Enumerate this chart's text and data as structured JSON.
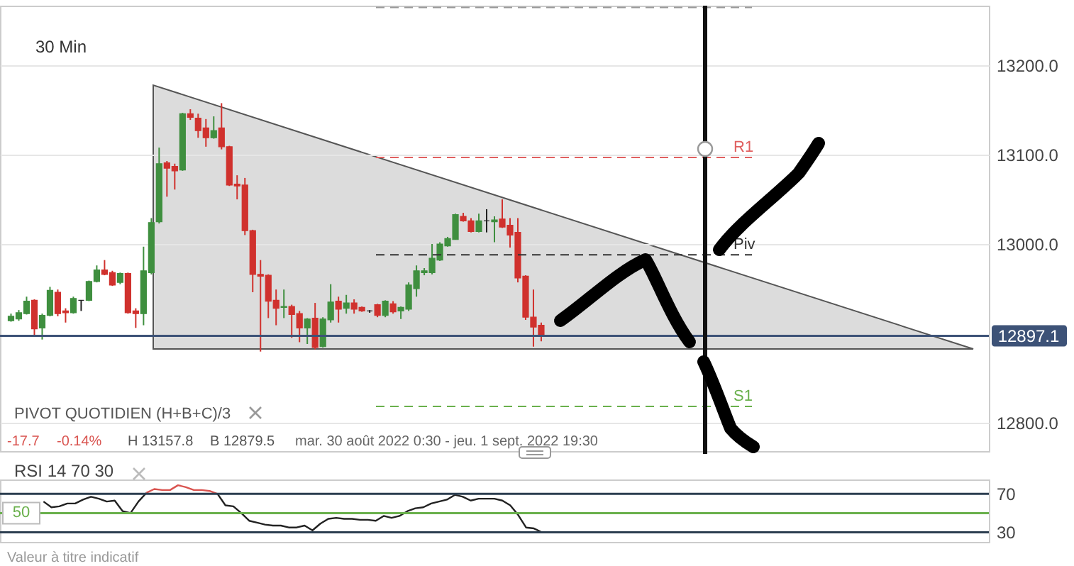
{
  "chart_data": [
    {
      "type": "candlestick",
      "categories": [
        null,
        null,
        null,
        null,
        null,
        null,
        null,
        null,
        null,
        null,
        null,
        null,
        null,
        null,
        null,
        null,
        null,
        null,
        null,
        null,
        null,
        null,
        null,
        null,
        null,
        null,
        null,
        null,
        null,
        null,
        null,
        null,
        null,
        null,
        null,
        null,
        null,
        null,
        null,
        null,
        null,
        null,
        null,
        null,
        null,
        null,
        null,
        null,
        null,
        null,
        null,
        null,
        null,
        null,
        null,
        null,
        null,
        null,
        null,
        null,
        null,
        null,
        null,
        null,
        null,
        null,
        null,
        null,
        null,
        null,
        null,
        null,
        null,
        null,
        null,
        null,
        null,
        null,
        null,
        null,
        null,
        null,
        null,
        null,
        null,
        null,
        null,
        null,
        null,
        null,
        null,
        null,
        null,
        null,
        null,
        null,
        null,
        null,
        null,
        null,
        null,
        null,
        null,
        null,
        null,
        null,
        null,
        null,
        null,
        null,
        null,
        null,
        null,
        null,
        null,
        null,
        null,
        null,
        null,
        null,
        null,
        null,
        null,
        null,
        null
      ],
      "ohlc": [
        [
          12914,
          12922,
          12913,
          12919
        ],
        [
          12916,
          12926,
          12914,
          12923
        ],
        [
          12922,
          12941,
          12921,
          12936
        ],
        [
          12937,
          12938,
          12898,
          12905
        ],
        [
          12906,
          12922,
          12893,
          12920
        ],
        [
          12920,
          12952,
          12919,
          12948
        ],
        [
          12946,
          12949,
          12919,
          12922
        ],
        [
          12925,
          12928,
          12912,
          12923
        ],
        [
          12923,
          12941,
          12922,
          12939
        ],
        [
          12937,
          12937,
          12925,
          12937
        ],
        [
          12937,
          12959,
          12936,
          12958
        ],
        [
          12958,
          12976,
          12957,
          12971
        ],
        [
          12971,
          12982,
          12965,
          12966
        ],
        [
          12968,
          12970,
          12953,
          12954
        ],
        [
          12957,
          12968,
          12955,
          12967
        ],
        [
          12967,
          12968,
          12922,
          12923
        ],
        [
          12925,
          12928,
          12906,
          12922
        ],
        [
          12922,
          12997,
          12909,
          12970
        ],
        [
          12968,
          13029,
          12966,
          13024
        ],
        [
          13025,
          13108,
          13023,
          13090
        ],
        [
          13091,
          13093,
          13053,
          13085
        ],
        [
          13087,
          13090,
          13061,
          13082
        ],
        [
          13083,
          13147,
          13082,
          13146
        ],
        [
          13146,
          13151,
          13139,
          13142
        ],
        [
          13141,
          13146,
          13119,
          13127
        ],
        [
          13130,
          13140,
          13109,
          13119
        ],
        [
          13119,
          13143,
          13118,
          13127
        ],
        [
          13130,
          13157.8,
          13106,
          13109
        ],
        [
          13109,
          13110,
          13065,
          13066
        ],
        [
          13067,
          13077,
          13050,
          13065
        ],
        [
          13066,
          13074,
          13010,
          13015
        ],
        [
          13015,
          13016,
          12946,
          12966
        ],
        [
          12966,
          12982,
          12879.5,
          12964
        ],
        [
          12965,
          12966,
          12917,
          12936
        ],
        [
          12937,
          12949,
          12909,
          12928
        ],
        [
          12929,
          12949,
          12917,
          12930
        ],
        [
          12930,
          12932,
          12895,
          12921
        ],
        [
          12922,
          12925,
          12890,
          12906
        ],
        [
          12906,
          12917,
          12888,
          12916
        ],
        [
          12917,
          12934,
          12882,
          12884
        ],
        [
          12885,
          12918,
          12884,
          12916
        ],
        [
          12915,
          12955,
          12912,
          12935
        ],
        [
          12936,
          12941,
          12912,
          12927
        ],
        [
          12928,
          12943,
          12922,
          12934
        ],
        [
          12934,
          12938,
          12922,
          12927
        ],
        [
          12929,
          12930,
          12924,
          12925
        ],
        [
          12925,
          12926,
          12923,
          12925
        ],
        [
          12932,
          12933,
          12918,
          12920
        ],
        [
          12920,
          12937,
          12918,
          12936
        ],
        [
          12933,
          12936,
          12922,
          12924
        ],
        [
          12925,
          12930,
          12916,
          12929
        ],
        [
          12927,
          12957,
          12925,
          12954
        ],
        [
          12950,
          12976,
          12941,
          12970
        ],
        [
          12968,
          12973,
          12965,
          12970
        ],
        [
          12968,
          13000,
          12966,
          12984
        ],
        [
          12982,
          13002,
          12981,
          13000
        ],
        [
          12998,
          13008,
          12997,
          13006
        ],
        [
          13005,
          13034,
          13005,
          13033
        ],
        [
          13031,
          13035,
          13025,
          13026
        ],
        [
          13026,
          13029,
          13013,
          13014
        ],
        [
          13014,
          13034,
          13013,
          13026
        ],
        [
          13026,
          13039,
          13013,
          13026
        ],
        [
          13025,
          13031,
          13002,
          13027
        ],
        [
          13028,
          13050,
          13018,
          13019
        ],
        [
          13021,
          13029,
          12996,
          13010
        ],
        [
          13013,
          13029,
          12957,
          12962
        ],
        [
          12964,
          12965,
          12915,
          12918
        ],
        [
          12918,
          12949,
          12885,
          12907
        ],
        [
          12909,
          12912,
          12891,
          12897.1
        ],
        null,
        null,
        null,
        null,
        null,
        null,
        null,
        null,
        null,
        null,
        null,
        null,
        null,
        null,
        null,
        null,
        null,
        null,
        null,
        null,
        null,
        null,
        null,
        null,
        null,
        null,
        null,
        null,
        null,
        null,
        null,
        null,
        null,
        null,
        null,
        null,
        null,
        null,
        null,
        null,
        null,
        null,
        null,
        null,
        null,
        null,
        null,
        null,
        null,
        null,
        null,
        null,
        null,
        null,
        null,
        null
      ],
      "ylim": [
        12768,
        13267
      ],
      "yticks": [
        {
          "value": 12800,
          "label": "12800.0"
        },
        {
          "value": 13000,
          "label": "13000.0"
        },
        {
          "value": 13100,
          "label": "13100.0"
        },
        {
          "value": 13200,
          "label": "13200.0"
        }
      ],
      "grid": "y",
      "tick_labels": "y",
      "ref_lines": [
        {
          "axis": "y",
          "value": 13265,
          "label": null,
          "color": "#999999",
          "line_style": "dashed"
        },
        {
          "axis": "y",
          "value": 13097,
          "label": "R1",
          "color": "#e06060",
          "line_style": "dashed"
        },
        {
          "axis": "y",
          "value": 12988,
          "label": "Piv",
          "color": "#333333",
          "line_style": "dashed"
        },
        {
          "axis": "y",
          "value": 12818,
          "label": "S1",
          "color": "#6ab04c",
          "line_style": "dashed"
        },
        {
          "axis": "y",
          "value": 12897.1,
          "label": "12897.1",
          "color": "#3d5277",
          "line_style": "solid"
        }
      ],
      "annotations": [
        "30 Min",
        "PIVOT QUOTIDIEN (H+B+C)/3",
        "-17.7",
        "-0.14%",
        "H 13157.8",
        "B 12879.5",
        "mar. 30 août 2022 0:30 - jeu. 1 sept. 2022 19:30"
      ]
    },
    {
      "type": "line",
      "title": "RSI 14 70 30",
      "categories": [
        null,
        null,
        null,
        null,
        null,
        null,
        null,
        null,
        null,
        null,
        null,
        null,
        null,
        null,
        null,
        null,
        null,
        null,
        null,
        null,
        null,
        null,
        null,
        null,
        null,
        null,
        null,
        null,
        null,
        null,
        null,
        null,
        null,
        null,
        null,
        null,
        null,
        null,
        null,
        null,
        null,
        null,
        null,
        null,
        null,
        null,
        null,
        null,
        null,
        null,
        null,
        null,
        null,
        null,
        null,
        null,
        null,
        null,
        null,
        null,
        null,
        null,
        null,
        null,
        null,
        null,
        null,
        null,
        null,
        null,
        null,
        null,
        null,
        null,
        null,
        null,
        null,
        null,
        null,
        null,
        null,
        null,
        null,
        null,
        null,
        null,
        null,
        null,
        null,
        null,
        null,
        null,
        null,
        null,
        null,
        null,
        null,
        null,
        null,
        null,
        null,
        null,
        null,
        null,
        null,
        null,
        null,
        null,
        null,
        null,
        null,
        null,
        null,
        null,
        null,
        null,
        null,
        null,
        null,
        null,
        null,
        null,
        null,
        null,
        null
      ],
      "series": [
        {
          "color": "#222222",
          "values": [
            null,
            null,
            null,
            null,
            null,
            62,
            56,
            57,
            60,
            60,
            64,
            67,
            65,
            62,
            63,
            52,
            50,
            62,
            71,
            null,
            null,
            null,
            null,
            null,
            null,
            null,
            null,
            70,
            58,
            57,
            50,
            42,
            40,
            38,
            37,
            37,
            35,
            35,
            37,
            32,
            39,
            44,
            45,
            44,
            44,
            43,
            43,
            42,
            47,
            45,
            47,
            52,
            55,
            56,
            60,
            62,
            64,
            69,
            67,
            63,
            65,
            65,
            65,
            63,
            58,
            48,
            35,
            34,
            30,
            null,
            null,
            null,
            null,
            null,
            null,
            null,
            null,
            null,
            null,
            null,
            null,
            null,
            null,
            null,
            null,
            null,
            null,
            null,
            null,
            null,
            null,
            null,
            null,
            null,
            null,
            null,
            null,
            null,
            null,
            null,
            null,
            null,
            null,
            null,
            null,
            null,
            null,
            null,
            null,
            null,
            null,
            null,
            null,
            null,
            null,
            null,
            null,
            null,
            null,
            null,
            null,
            null,
            null,
            null,
            null
          ]
        },
        {
          "color": "#d9534f",
          "values": [
            null,
            null,
            null,
            null,
            null,
            null,
            null,
            null,
            null,
            null,
            null,
            null,
            null,
            null,
            null,
            null,
            null,
            null,
            71,
            75,
            74,
            74,
            79,
            77,
            74,
            74,
            73,
            70,
            null,
            null,
            null,
            null,
            null,
            null,
            null,
            null,
            null,
            null,
            null,
            null,
            null,
            null,
            null,
            null,
            null,
            null,
            null,
            null,
            null,
            null,
            null,
            null,
            null,
            null,
            null,
            null,
            null,
            null,
            null,
            null,
            null,
            null,
            null,
            null,
            null,
            null,
            null,
            null,
            null,
            null,
            null,
            null,
            null,
            null,
            null,
            null,
            null,
            null,
            null,
            null,
            null,
            null,
            null,
            null,
            null,
            null,
            null,
            null,
            null,
            null,
            null,
            null,
            null,
            null,
            null,
            null,
            null,
            null,
            null,
            null,
            null,
            null,
            null,
            null,
            null,
            null,
            null,
            null,
            null,
            null,
            null,
            null,
            null,
            null,
            null,
            null,
            null,
            null,
            null,
            null,
            null,
            null,
            null,
            null,
            null
          ]
        }
      ],
      "ylim": [
        20,
        85
      ],
      "yticks": [
        30,
        70
      ],
      "tick_labels": "y",
      "ref_lines": [
        {
          "axis": "y",
          "value": 70,
          "label": null,
          "color": "#2c3e50",
          "line_style": "solid"
        },
        {
          "axis": "y",
          "value": 50,
          "label": "50",
          "color": "#6ab04c",
          "line_style": "solid"
        },
        {
          "axis": "y",
          "value": 30,
          "label": null,
          "color": "#2c3e50",
          "line_style": "solid"
        }
      ],
      "annotations": [
        "Valeur à titre indicatif"
      ]
    }
  ]
}
